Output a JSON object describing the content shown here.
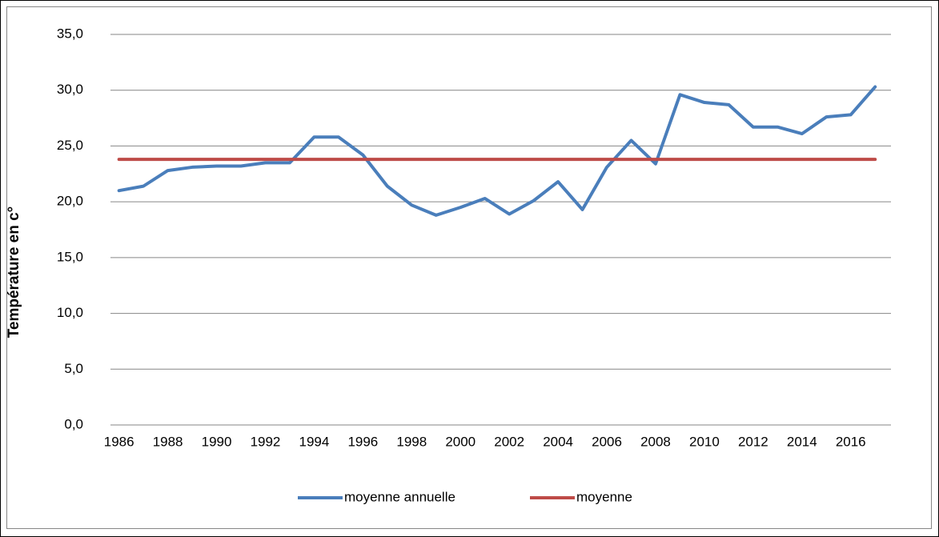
{
  "chart_data": {
    "type": "line",
    "y_label": "Température en c°",
    "categories": [
      "1986",
      null,
      "1988",
      null,
      "1990",
      null,
      "1992",
      null,
      "1994",
      null,
      "1996",
      null,
      "1998",
      null,
      "2000",
      null,
      "2002",
      null,
      "2004",
      null,
      "2006",
      null,
      "2008",
      null,
      "2010",
      null,
      "2012",
      null,
      "2014",
      null,
      "2016",
      null
    ],
    "series": [
      {
        "name": "moyenne annuelle",
        "color": "#4a7ebb",
        "values": [
          21.0,
          21.4,
          22.8,
          23.1,
          23.2,
          23.2,
          23.5,
          23.5,
          25.8,
          25.8,
          24.2,
          21.4,
          19.7,
          18.8,
          19.5,
          20.3,
          18.9,
          20.1,
          21.8,
          19.3,
          23.1,
          25.5,
          23.4,
          29.6,
          28.9,
          28.7,
          26.7,
          26.7,
          26.1,
          27.6,
          27.8,
          30.3
        ]
      },
      {
        "name": "moyenne",
        "color": "#be4b48",
        "values": [
          23.8,
          23.8,
          23.8,
          23.8,
          23.8,
          23.8,
          23.8,
          23.8,
          23.8,
          23.8,
          23.8,
          23.8,
          23.8,
          23.8,
          23.8,
          23.8,
          23.8,
          23.8,
          23.8,
          23.8,
          23.8,
          23.8,
          23.8,
          23.8,
          23.8,
          23.8,
          23.8,
          23.8,
          23.8,
          23.8,
          23.8,
          23.8
        ]
      }
    ],
    "ylim": [
      0,
      35
    ],
    "yticks": [
      {
        "value": 0,
        "label": "0,0"
      },
      {
        "value": 5,
        "label": "5,0"
      },
      {
        "value": 10,
        "label": "10,0"
      },
      {
        "value": 15,
        "label": "15,0"
      },
      {
        "value": 20,
        "label": "20,0"
      },
      {
        "value": 25,
        "label": "25,0"
      },
      {
        "value": 30,
        "label": "30,0"
      },
      {
        "value": 35,
        "label": "35,0"
      }
    ],
    "grid": true,
    "legend": "bottom"
  }
}
